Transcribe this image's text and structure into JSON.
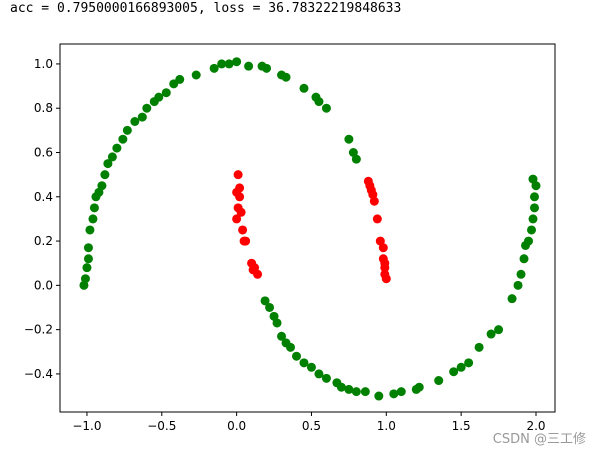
{
  "chart_data": {
    "type": "scatter",
    "title": "acc = 0.7950000166893005, loss = 36.78322219848633",
    "watermark": "CSDN @三工修",
    "xlim": [
      -1.18,
      2.127
    ],
    "ylim": [
      -0.572,
      1.09
    ],
    "xticks": [
      {
        "value": -1.0,
        "label": "−1.0"
      },
      {
        "value": -0.5,
        "label": "−0.5"
      },
      {
        "value": 0.0,
        "label": "0.0"
      },
      {
        "value": 0.5,
        "label": "0.5"
      },
      {
        "value": 1.0,
        "label": "1.0"
      },
      {
        "value": 1.5,
        "label": "1.5"
      },
      {
        "value": 2.0,
        "label": "2.0"
      }
    ],
    "yticks": [
      {
        "value": -0.4,
        "label": "−0.4"
      },
      {
        "value": -0.2,
        "label": "−0.2"
      },
      {
        "value": 0.0,
        "label": "0.0"
      },
      {
        "value": 0.2,
        "label": "0.2"
      },
      {
        "value": 0.4,
        "label": "0.4"
      },
      {
        "value": 0.6,
        "label": "0.6"
      },
      {
        "value": 0.8,
        "label": "0.8"
      },
      {
        "value": 1.0,
        "label": "1.0"
      }
    ],
    "series": [
      {
        "color": "#008000",
        "x": [
          -1.02,
          -1.01,
          -1.0,
          -0.99,
          -0.99,
          -0.98,
          -0.96,
          -0.95,
          -0.94,
          -0.92,
          -0.9,
          -0.88,
          -0.86,
          -0.83,
          -0.8,
          -0.76,
          -0.73,
          -0.68,
          -0.63,
          -0.6,
          -0.55,
          -0.52,
          -0.47,
          -0.42,
          -0.38,
          -0.27,
          -0.15,
          -0.1,
          -0.05,
          0.0,
          0.08,
          0.17,
          0.2,
          0.3,
          0.33,
          0.45,
          0.53,
          0.55,
          0.6,
          0.75,
          0.78,
          0.8,
          0.19,
          0.22,
          0.25,
          0.27,
          0.3,
          0.33,
          0.36,
          0.4,
          0.45,
          0.5,
          0.55,
          0.6,
          0.67,
          0.7,
          0.75,
          0.8,
          0.86,
          0.95,
          1.05,
          1.1,
          1.2,
          1.22,
          1.35,
          1.45,
          1.5,
          1.55,
          1.62,
          1.7,
          1.75,
          1.84,
          1.88,
          1.9,
          1.92,
          1.93,
          1.95,
          1.97,
          1.98,
          1.99,
          1.99,
          2.0,
          1.98
        ],
        "values": [
          0.0,
          0.03,
          0.08,
          0.12,
          0.17,
          0.25,
          0.3,
          0.35,
          0.4,
          0.42,
          0.45,
          0.5,
          0.55,
          0.58,
          0.62,
          0.66,
          0.7,
          0.74,
          0.76,
          0.8,
          0.83,
          0.85,
          0.87,
          0.91,
          0.93,
          0.95,
          0.98,
          1.0,
          1.0,
          1.01,
          0.99,
          0.99,
          0.98,
          0.95,
          0.94,
          0.89,
          0.85,
          0.83,
          0.8,
          0.66,
          0.6,
          0.57,
          -0.07,
          -0.1,
          -0.14,
          -0.17,
          -0.23,
          -0.26,
          -0.28,
          -0.32,
          -0.35,
          -0.37,
          -0.4,
          -0.42,
          -0.44,
          -0.46,
          -0.47,
          -0.48,
          -0.48,
          -0.5,
          -0.49,
          -0.48,
          -0.47,
          -0.46,
          -0.43,
          -0.39,
          -0.37,
          -0.35,
          -0.28,
          -0.22,
          -0.2,
          -0.06,
          0.0,
          0.05,
          0.12,
          0.18,
          0.2,
          0.25,
          0.3,
          0.35,
          0.4,
          0.45,
          0.48
        ]
      },
      {
        "color": "#ff0000",
        "x": [
          0.88,
          0.89,
          0.9,
          0.91,
          0.92,
          0.94,
          0.96,
          0.98,
          0.98,
          0.99,
          0.99,
          1.0,
          0.99,
          0.01,
          0.02,
          0.0,
          0.02,
          0.01,
          0.03,
          0.0,
          0.04,
          0.05,
          0.06,
          0.1,
          0.12,
          0.14,
          0.11
        ],
        "values": [
          0.47,
          0.45,
          0.43,
          0.41,
          0.38,
          0.3,
          0.2,
          0.17,
          0.12,
          0.08,
          0.05,
          0.03,
          0.1,
          0.5,
          0.44,
          0.42,
          0.4,
          0.35,
          0.33,
          0.3,
          0.25,
          0.2,
          0.2,
          0.1,
          0.08,
          0.05,
          0.07
        ]
      }
    ]
  }
}
